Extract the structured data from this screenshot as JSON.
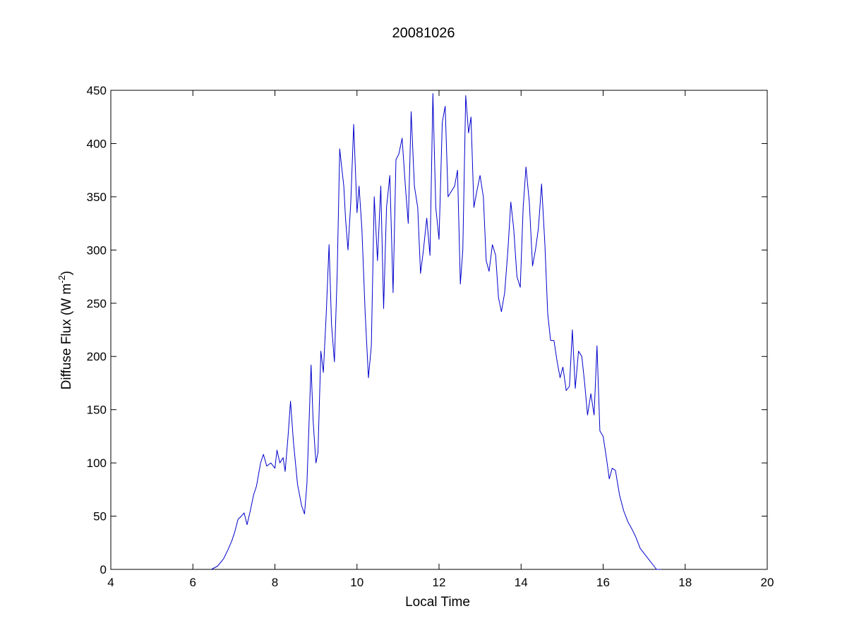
{
  "chart_data": {
    "type": "line",
    "title": "20081026",
    "xlabel": "Local Time",
    "ylabel": {
      "prefix": "Diffuse Flux (W m",
      "superscript": "-2",
      "suffix": ")"
    },
    "xlim": [
      4,
      20
    ],
    "ylim": [
      0,
      450
    ],
    "xticks": [
      4,
      6,
      8,
      10,
      12,
      14,
      16,
      18,
      20
    ],
    "yticks": [
      0,
      50,
      100,
      150,
      200,
      250,
      300,
      350,
      400,
      450
    ],
    "grid": false,
    "line_color": "#0000cc",
    "series": [
      {
        "x": [
          6.45,
          6.6,
          6.75,
          6.85,
          6.95,
          7.02,
          7.1,
          7.18,
          7.25,
          7.32,
          7.4,
          7.48,
          7.55,
          7.65,
          7.72,
          7.8,
          7.9,
          8.0,
          8.05,
          8.12,
          8.2,
          8.25,
          8.32,
          8.38,
          8.45,
          8.55,
          8.65,
          8.72,
          8.78,
          8.82,
          8.88,
          8.93,
          9.0,
          9.05,
          9.12,
          9.18,
          9.25,
          9.32,
          9.38,
          9.45,
          9.52,
          9.58,
          9.62,
          9.68,
          9.72,
          9.78,
          9.85,
          9.92,
          10.0,
          10.05,
          10.12,
          10.2,
          10.28,
          10.35,
          10.42,
          10.5,
          10.58,
          10.65,
          10.72,
          10.8,
          10.88,
          10.95,
          11.02,
          11.1,
          11.18,
          11.25,
          11.32,
          11.4,
          11.48,
          11.55,
          11.62,
          11.7,
          11.78,
          11.85,
          11.92,
          12.0,
          12.08,
          12.15,
          12.22,
          12.3,
          12.38,
          12.45,
          12.52,
          12.58,
          12.65,
          12.72,
          12.78,
          12.85,
          12.92,
          13.0,
          13.08,
          13.15,
          13.22,
          13.3,
          13.38,
          13.45,
          13.52,
          13.6,
          13.68,
          13.75,
          13.82,
          13.9,
          13.98,
          14.05,
          14.12,
          14.2,
          14.28,
          14.35,
          14.42,
          14.5,
          14.58,
          14.65,
          14.72,
          14.8,
          14.88,
          14.95,
          15.02,
          15.1,
          15.18,
          15.25,
          15.32,
          15.4,
          15.48,
          15.55,
          15.62,
          15.7,
          15.78,
          15.85,
          15.92,
          16.0,
          16.08,
          16.15,
          16.22,
          16.3,
          16.4,
          16.5,
          16.6,
          16.7,
          16.8,
          16.9,
          17.0,
          17.1,
          17.2,
          17.3,
          17.4
        ],
        "y": [
          0,
          3,
          10,
          18,
          27,
          35,
          47,
          50,
          53,
          42,
          55,
          70,
          78,
          100,
          108,
          97,
          100,
          95,
          112,
          100,
          105,
          92,
          125,
          158,
          120,
          80,
          60,
          52,
          80,
          125,
          192,
          140,
          100,
          110,
          205,
          185,
          240,
          305,
          230,
          195,
          280,
          395,
          380,
          360,
          330,
          300,
          345,
          418,
          335,
          360,
          320,
          240,
          180,
          210,
          350,
          290,
          360,
          245,
          340,
          370,
          260,
          385,
          390,
          405,
          360,
          325,
          430,
          360,
          340,
          278,
          300,
          330,
          295,
          447,
          340,
          310,
          420,
          435,
          350,
          355,
          360,
          375,
          268,
          300,
          445,
          410,
          425,
          340,
          355,
          370,
          350,
          290,
          280,
          305,
          295,
          255,
          242,
          260,
          300,
          345,
          320,
          275,
          265,
          340,
          378,
          345,
          285,
          300,
          320,
          362,
          305,
          240,
          215,
          215,
          195,
          180,
          190,
          168,
          172,
          225,
          170,
          205,
          200,
          175,
          145,
          165,
          145,
          210,
          130,
          125,
          105,
          85,
          95,
          93,
          70,
          55,
          45,
          38,
          30,
          20,
          15,
          10,
          5,
          0,
          0
        ]
      }
    ]
  }
}
